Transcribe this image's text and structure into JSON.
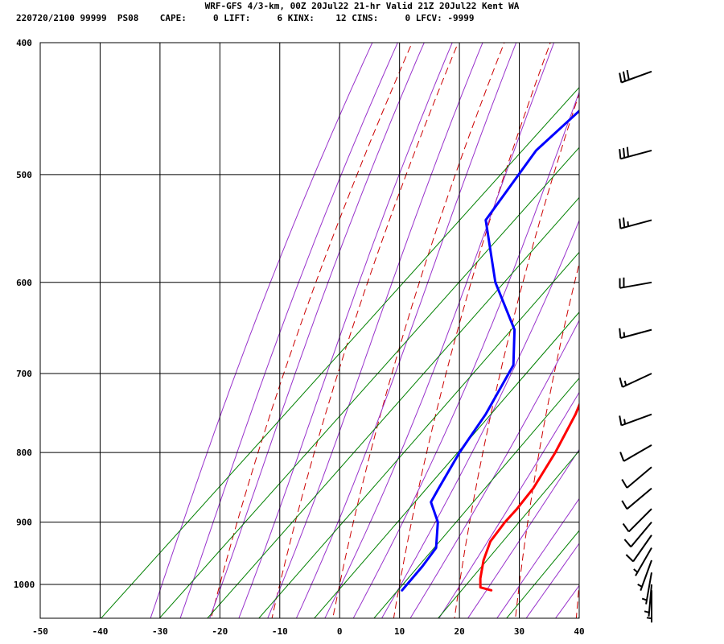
{
  "header": {
    "line1": "WRF-GFS 4/3-km, 00Z 20Jul22 21-hr Valid 21Z 20Jul22 Kent WA",
    "line2": "220720/2100 99999  PS08    CAPE:     0 LIFT:     6 KINX:    12 CINS:     0 LFCV: -9999"
  },
  "chart_data": {
    "type": "line",
    "subtype": "skew-T log-P sounding",
    "x_axis": {
      "ticks": [
        -50,
        -40,
        -30,
        -20,
        -10,
        0,
        10,
        20,
        30,
        40
      ],
      "range": [
        -50,
        40
      ],
      "unit": "°C"
    },
    "y_axis": {
      "ticks": [
        400,
        500,
        600,
        700,
        800,
        900,
        1000
      ],
      "range": [
        400,
        1040
      ],
      "scale": "log",
      "unit": "hPa"
    },
    "colors": {
      "temperature": "#ff0000",
      "dewpoint": "#0000ff",
      "dry_adiabats": "#cc0000",
      "moist_adiabats": "#9933cc",
      "mixing_ratio": "#008000",
      "grid": "#000000"
    },
    "series": [
      {
        "key": "temperature",
        "points": [
          [
            420,
            -19.4
          ],
          [
            450,
            -15.3
          ],
          [
            500,
            -9.5
          ],
          [
            540,
            -5.0
          ],
          [
            600,
            0.0
          ],
          [
            650,
            3.5
          ],
          [
            700,
            7.0
          ],
          [
            750,
            11.0
          ],
          [
            800,
            14.0
          ],
          [
            850,
            16.3
          ],
          [
            880,
            17.0
          ],
          [
            900,
            17.2
          ],
          [
            930,
            18.0
          ],
          [
            960,
            20.0
          ],
          [
            990,
            22.5
          ],
          [
            1005,
            24.0
          ],
          [
            1010,
            26.3
          ]
        ]
      },
      {
        "key": "dewpoint",
        "points": [
          [
            420,
            -38.4
          ],
          [
            480,
            -39.6
          ],
          [
            540,
            -36.4
          ],
          [
            600,
            -24.4
          ],
          [
            650,
            -13.3
          ],
          [
            690,
            -7.6
          ],
          [
            750,
            -4.0
          ],
          [
            800,
            -2.0
          ],
          [
            850,
            0.5
          ],
          [
            870,
            1.5
          ],
          [
            900,
            6.0
          ],
          [
            940,
            10.0
          ],
          [
            970,
            10.8
          ],
          [
            1010,
            11.4
          ]
        ]
      }
    ],
    "wind_barbs": [
      {
        "p": 420,
        "dir": 250,
        "kt": 30
      },
      {
        "p": 480,
        "dir": 255,
        "kt": 30
      },
      {
        "p": 540,
        "dir": 255,
        "kt": 25
      },
      {
        "p": 600,
        "dir": 260,
        "kt": 20
      },
      {
        "p": 650,
        "dir": 255,
        "kt": 15
      },
      {
        "p": 700,
        "dir": 245,
        "kt": 15
      },
      {
        "p": 750,
        "dir": 250,
        "kt": 15
      },
      {
        "p": 790,
        "dir": 240,
        "kt": 10
      },
      {
        "p": 820,
        "dir": 230,
        "kt": 10
      },
      {
        "p": 850,
        "dir": 230,
        "kt": 10
      },
      {
        "p": 880,
        "dir": 225,
        "kt": 10
      },
      {
        "p": 900,
        "dir": 220,
        "kt": 10
      },
      {
        "p": 920,
        "dir": 215,
        "kt": 10
      },
      {
        "p": 940,
        "dir": 210,
        "kt": 5
      },
      {
        "p": 960,
        "dir": 200,
        "kt": 5
      },
      {
        "p": 980,
        "dir": 190,
        "kt": 5
      },
      {
        "p": 1000,
        "dir": 185,
        "kt": 5
      },
      {
        "p": 1010,
        "dir": 180,
        "kt": 5
      }
    ]
  }
}
